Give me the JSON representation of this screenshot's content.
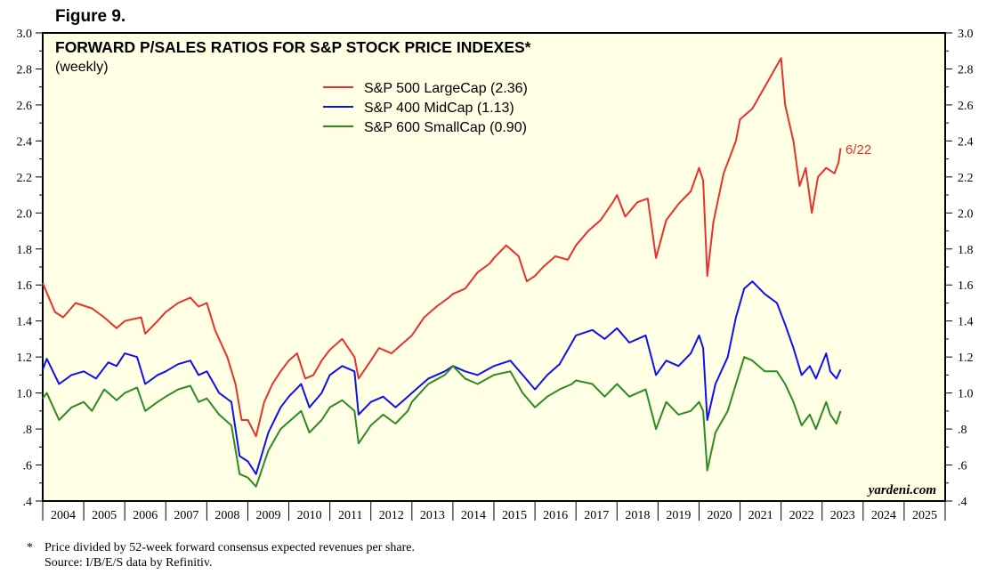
{
  "figure_label": "Figure 9.",
  "chart_data": {
    "type": "line",
    "title": "FORWARD P/SALES RATIOS FOR S&P STOCK PRICE INDEXES*",
    "subtitle": "(weekly)",
    "xlabel": "",
    "ylabel": "",
    "xlim": [
      2004,
      2026
    ],
    "ylim": [
      0.4,
      3.0
    ],
    "y_ticks": [
      "3.0",
      "2.8",
      "2.6",
      "2.4",
      "2.2",
      "2.0",
      "1.8",
      "1.6",
      "1.4",
      "1.2",
      "1.0",
      ".8",
      ".6",
      ".4"
    ],
    "x_tick_labels": [
      "2004",
      "2005",
      "2006",
      "2007",
      "2008",
      "2009",
      "2010",
      "2011",
      "2012",
      "2013",
      "2014",
      "2015",
      "2016",
      "2017",
      "2018",
      "2019",
      "2020",
      "2021",
      "2022",
      "2023",
      "2024",
      "2025"
    ],
    "legend_position": "top-center",
    "annotation": "6/22",
    "watermark": "yardeni.com",
    "series": [
      {
        "name": "S&P 500 LargeCap (2.36)",
        "color": "#e8312a",
        "x": [
          2004.0,
          2004.3,
          2004.5,
          2004.8,
          2005.2,
          2005.5,
          2005.8,
          2006.0,
          2006.4,
          2006.5,
          2006.8,
          2007.0,
          2007.3,
          2007.6,
          2007.8,
          2008.0,
          2008.2,
          2008.5,
          2008.7,
          2008.85,
          2009.0,
          2009.2,
          2009.4,
          2009.6,
          2009.8,
          2010.0,
          2010.2,
          2010.4,
          2010.6,
          2010.8,
          2011.0,
          2011.3,
          2011.6,
          2011.7,
          2012.0,
          2012.2,
          2012.5,
          2012.8,
          2013.0,
          2013.3,
          2013.6,
          2013.9,
          2014.0,
          2014.3,
          2014.6,
          2014.9,
          2015.0,
          2015.3,
          2015.6,
          2015.8,
          2016.0,
          2016.2,
          2016.5,
          2016.8,
          2017.0,
          2017.3,
          2017.6,
          2017.9,
          2018.0,
          2018.2,
          2018.5,
          2018.75,
          2018.95,
          2019.2,
          2019.5,
          2019.8,
          2020.0,
          2020.1,
          2020.2,
          2020.35,
          2020.6,
          2020.9,
          2021.0,
          2021.3,
          2021.6,
          2021.8,
          2022.0,
          2022.1,
          2022.3,
          2022.45,
          2022.6,
          2022.75,
          2022.9,
          2023.1,
          2023.3,
          2023.4,
          2023.45
        ],
        "values": [
          1.61,
          1.45,
          1.42,
          1.5,
          1.47,
          1.42,
          1.36,
          1.4,
          1.42,
          1.33,
          1.4,
          1.45,
          1.5,
          1.53,
          1.48,
          1.5,
          1.35,
          1.2,
          1.05,
          0.85,
          0.85,
          0.76,
          0.95,
          1.05,
          1.12,
          1.18,
          1.22,
          1.08,
          1.1,
          1.18,
          1.24,
          1.3,
          1.2,
          1.08,
          1.18,
          1.25,
          1.22,
          1.28,
          1.32,
          1.42,
          1.48,
          1.53,
          1.55,
          1.58,
          1.67,
          1.72,
          1.75,
          1.82,
          1.76,
          1.62,
          1.65,
          1.7,
          1.76,
          1.74,
          1.82,
          1.9,
          1.96,
          2.06,
          2.1,
          1.98,
          2.06,
          2.08,
          1.75,
          1.96,
          2.05,
          2.12,
          2.25,
          2.18,
          1.65,
          1.95,
          2.22,
          2.4,
          2.52,
          2.58,
          2.7,
          2.78,
          2.86,
          2.6,
          2.4,
          2.15,
          2.25,
          2.0,
          2.2,
          2.25,
          2.22,
          2.28,
          2.36
        ]
      },
      {
        "name": "S&P 400 MidCap (1.13)",
        "color": "#1010ee",
        "x": [
          2004.0,
          2004.1,
          2004.4,
          2004.7,
          2005.0,
          2005.3,
          2005.6,
          2005.8,
          2006.0,
          2006.3,
          2006.5,
          2006.8,
          2007.0,
          2007.3,
          2007.6,
          2007.8,
          2008.0,
          2008.3,
          2008.6,
          2008.8,
          2009.0,
          2009.2,
          2009.5,
          2009.8,
          2010.0,
          2010.3,
          2010.5,
          2010.8,
          2011.0,
          2011.3,
          2011.6,
          2011.7,
          2012.0,
          2012.3,
          2012.6,
          2012.9,
          2013.0,
          2013.4,
          2013.8,
          2014.0,
          2014.3,
          2014.6,
          2015.0,
          2015.4,
          2015.7,
          2016.0,
          2016.3,
          2016.6,
          2016.9,
          2017.0,
          2017.4,
          2017.7,
          2018.0,
          2018.3,
          2018.7,
          2018.95,
          2019.2,
          2019.5,
          2019.8,
          2020.0,
          2020.1,
          2020.2,
          2020.4,
          2020.7,
          2020.9,
          2021.1,
          2021.3,
          2021.6,
          2021.9,
          2022.1,
          2022.3,
          2022.5,
          2022.7,
          2022.85,
          2023.1,
          2023.2,
          2023.35,
          2023.45
        ],
        "values": [
          1.13,
          1.19,
          1.05,
          1.1,
          1.12,
          1.08,
          1.17,
          1.15,
          1.22,
          1.2,
          1.05,
          1.1,
          1.12,
          1.16,
          1.18,
          1.1,
          1.12,
          1.0,
          0.95,
          0.65,
          0.62,
          0.55,
          0.78,
          0.92,
          0.98,
          1.05,
          0.92,
          1.0,
          1.1,
          1.15,
          1.12,
          0.88,
          0.95,
          0.98,
          0.92,
          0.98,
          1.0,
          1.08,
          1.12,
          1.15,
          1.12,
          1.1,
          1.15,
          1.18,
          1.1,
          1.02,
          1.1,
          1.16,
          1.28,
          1.32,
          1.35,
          1.3,
          1.36,
          1.28,
          1.32,
          1.1,
          1.18,
          1.15,
          1.22,
          1.32,
          1.25,
          0.85,
          1.05,
          1.2,
          1.42,
          1.58,
          1.62,
          1.55,
          1.5,
          1.38,
          1.25,
          1.1,
          1.15,
          1.08,
          1.22,
          1.12,
          1.08,
          1.13
        ]
      },
      {
        "name": "S&P 600 SmallCap (0.90)",
        "color": "#2e8b22",
        "x": [
          2004.0,
          2004.1,
          2004.4,
          2004.7,
          2005.0,
          2005.2,
          2005.5,
          2005.8,
          2006.0,
          2006.3,
          2006.5,
          2006.8,
          2007.0,
          2007.3,
          2007.6,
          2007.8,
          2008.0,
          2008.3,
          2008.6,
          2008.8,
          2009.0,
          2009.2,
          2009.5,
          2009.8,
          2010.0,
          2010.3,
          2010.5,
          2010.8,
          2011.0,
          2011.3,
          2011.6,
          2011.7,
          2012.0,
          2012.3,
          2012.6,
          2012.9,
          2013.0,
          2013.4,
          2013.8,
          2014.0,
          2014.3,
          2014.6,
          2015.0,
          2015.4,
          2015.7,
          2016.0,
          2016.3,
          2016.6,
          2016.9,
          2017.0,
          2017.4,
          2017.7,
          2018.0,
          2018.3,
          2018.7,
          2018.95,
          2019.2,
          2019.5,
          2019.8,
          2020.0,
          2020.1,
          2020.2,
          2020.4,
          2020.7,
          2020.9,
          2021.1,
          2021.3,
          2021.6,
          2021.9,
          2022.1,
          2022.3,
          2022.5,
          2022.7,
          2022.85,
          2023.1,
          2023.2,
          2023.35,
          2023.45
        ],
        "values": [
          0.97,
          1.0,
          0.85,
          0.92,
          0.95,
          0.9,
          1.02,
          0.96,
          1.0,
          1.03,
          0.9,
          0.95,
          0.98,
          1.02,
          1.04,
          0.95,
          0.97,
          0.88,
          0.82,
          0.55,
          0.53,
          0.48,
          0.68,
          0.8,
          0.84,
          0.9,
          0.78,
          0.85,
          0.92,
          0.96,
          0.9,
          0.72,
          0.82,
          0.88,
          0.83,
          0.9,
          0.95,
          1.05,
          1.1,
          1.15,
          1.08,
          1.05,
          1.1,
          1.12,
          1.0,
          0.92,
          0.98,
          1.02,
          1.05,
          1.07,
          1.05,
          0.98,
          1.05,
          0.98,
          1.02,
          0.8,
          0.95,
          0.88,
          0.9,
          0.95,
          0.9,
          0.57,
          0.78,
          0.9,
          1.05,
          1.2,
          1.18,
          1.12,
          1.12,
          1.05,
          0.95,
          0.82,
          0.88,
          0.8,
          0.95,
          0.88,
          0.83,
          0.9
        ]
      }
    ]
  },
  "footnote": {
    "marker": "*",
    "line1": "Price divided by 52-week forward consensus expected revenues per share.",
    "line2": "Source: I/B/E/S data by Refinitiv."
  }
}
